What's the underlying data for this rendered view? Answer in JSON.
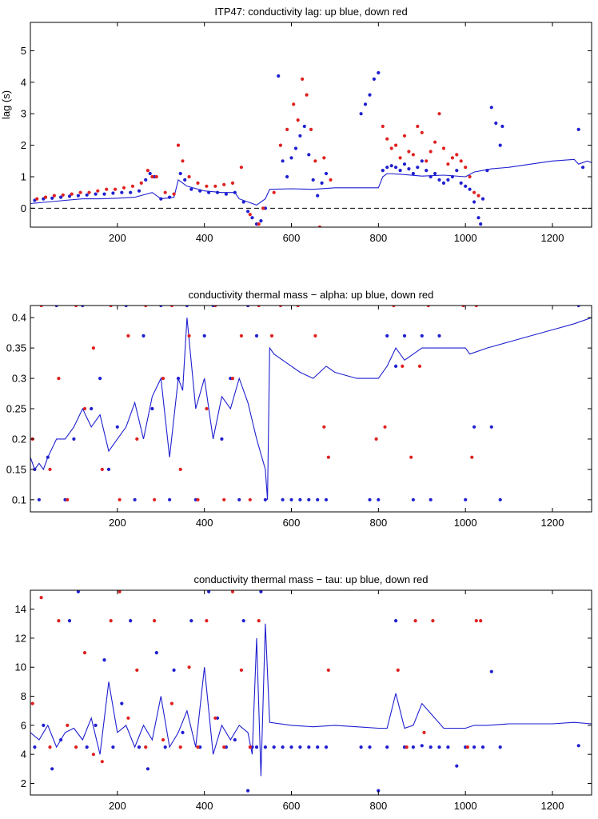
{
  "colors": {
    "up": "#1f1fd0",
    "down": "#e02020",
    "axis": "#000000",
    "zero": "#000000"
  },
  "chart_data": [
    {
      "type": "scatter",
      "title": "ITP47: conductivity lag: up blue, down red",
      "xlabel": "",
      "ylabel": "lag (s)",
      "xlim": [
        0,
        1290
      ],
      "ylim": [
        -0.6,
        5.9
      ],
      "xticks": [
        200,
        400,
        600,
        800,
        1000,
        1200
      ],
      "xtick_labels": [
        "200",
        "400",
        "600",
        "800",
        "1000",
        "1200"
      ],
      "yticks": [
        0,
        1,
        2,
        3,
        4,
        5
      ],
      "ytick_labels": [
        "0",
        "1",
        "2",
        "3",
        "4",
        "5"
      ],
      "zero_line": 0,
      "series": [
        {
          "name": "up (smoothed)",
          "kind": "line",
          "x": [
            0,
            40,
            80,
            120,
            160,
            200,
            240,
            280,
            300,
            330,
            340,
            360,
            400,
            440,
            470,
            480,
            500,
            520,
            540,
            550,
            600,
            650,
            700,
            750,
            800,
            810,
            820,
            850,
            900,
            950,
            1000,
            1020,
            1040,
            1060,
            1100,
            1150,
            1200,
            1250,
            1260,
            1280,
            1290
          ],
          "y": [
            0.15,
            0.2,
            0.25,
            0.3,
            0.3,
            0.32,
            0.35,
            0.5,
            0.3,
            0.35,
            0.9,
            0.7,
            0.55,
            0.5,
            0.5,
            0.3,
            0.2,
            0.1,
            0.3,
            0.6,
            0.62,
            0.6,
            0.65,
            0.65,
            0.65,
            1.0,
            1.1,
            1.08,
            1.02,
            1.05,
            1.0,
            1.15,
            1.2,
            1.25,
            1.3,
            1.4,
            1.5,
            1.55,
            1.4,
            1.5,
            1.45
          ]
        },
        {
          "name": "up",
          "kind": "points",
          "x": [
            10,
            30,
            50,
            70,
            90,
            110,
            130,
            150,
            170,
            190,
            210,
            230,
            250,
            265,
            275,
            285,
            300,
            320,
            345,
            355,
            370,
            390,
            410,
            430,
            450,
            470,
            490,
            500,
            510,
            520,
            530,
            540,
            570,
            580,
            590,
            600,
            610,
            620,
            630,
            640,
            650,
            660,
            670,
            680,
            760,
            770,
            780,
            790,
            800,
            810,
            820,
            830,
            840,
            850,
            860,
            870,
            880,
            890,
            900,
            910,
            920,
            930,
            940,
            950,
            960,
            970,
            980,
            990,
            1000,
            1010,
            1020,
            1030,
            1035,
            1040,
            1050,
            1060,
            1070,
            1080,
            1085,
            1260,
            1270
          ],
          "y": [
            0.25,
            0.3,
            0.32,
            0.35,
            0.38,
            0.4,
            0.42,
            0.45,
            0.45,
            0.48,
            0.5,
            0.5,
            0.55,
            0.9,
            1.1,
            1.0,
            0.3,
            0.35,
            1.1,
            0.9,
            0.6,
            0.55,
            0.5,
            0.5,
            0.45,
            0.5,
            0.2,
            -0.1,
            -0.3,
            -0.5,
            -0.4,
            0.0,
            4.2,
            1.5,
            1.0,
            1.6,
            1.9,
            2.3,
            2.6,
            1.7,
            0.9,
            0.4,
            0.8,
            1.1,
            3.0,
            3.3,
            3.6,
            4.1,
            4.3,
            1.2,
            1.3,
            1.35,
            1.3,
            1.2,
            1.4,
            1.25,
            1.1,
            1.3,
            1.5,
            1.2,
            1.0,
            1.1,
            0.9,
            0.8,
            0.9,
            1.0,
            1.2,
            0.8,
            0.7,
            0.6,
            0.2,
            -0.3,
            -0.5,
            0.3,
            1.2,
            3.2,
            2.7,
            2.0,
            2.6,
            2.5,
            1.3
          ]
        },
        {
          "name": "down",
          "kind": "points",
          "x": [
            15,
            35,
            55,
            75,
            95,
            115,
            135,
            155,
            175,
            195,
            215,
            235,
            255,
            270,
            280,
            290,
            310,
            330,
            340,
            350,
            365,
            385,
            405,
            425,
            445,
            465,
            485,
            505,
            525,
            535,
            560,
            575,
            590,
            605,
            615,
            625,
            635,
            645,
            655,
            665,
            675,
            690,
            810,
            820,
            830,
            840,
            850,
            860,
            870,
            880,
            890,
            900,
            910,
            920,
            930,
            940,
            950,
            960,
            970,
            980,
            990,
            1000,
            1010,
            1020,
            1030
          ],
          "y": [
            0.3,
            0.35,
            0.4,
            0.42,
            0.45,
            0.5,
            0.5,
            0.55,
            0.6,
            0.6,
            0.65,
            0.7,
            0.8,
            1.2,
            1.0,
            1.0,
            0.5,
            0.45,
            2.0,
            1.5,
            1.0,
            0.8,
            0.7,
            0.7,
            0.75,
            0.8,
            1.3,
            -0.2,
            -0.5,
            0.0,
            0.5,
            2.0,
            2.5,
            3.3,
            2.8,
            4.1,
            3.6,
            2.5,
            1.5,
            -0.6,
            1.6,
            0.9,
            2.6,
            2.2,
            1.9,
            2.0,
            1.6,
            2.3,
            1.8,
            1.7,
            2.6,
            2.4,
            1.5,
            1.8,
            2.1,
            3.0,
            1.9,
            1.4,
            1.6,
            1.7,
            1.5,
            1.3,
            1.0,
            0.5,
            0.4
          ]
        }
      ]
    },
    {
      "type": "scatter",
      "title": "conductivity thermal mass − alpha: up blue, down red",
      "xlabel": "",
      "ylabel": "",
      "xlim": [
        0,
        1290
      ],
      "ylim": [
        0.08,
        0.42
      ],
      "xticks": [
        200,
        400,
        600,
        800,
        1000,
        1200
      ],
      "xtick_labels": [
        "200",
        "400",
        "600",
        "800",
        "1000",
        "1200"
      ],
      "yticks": [
        0.1,
        0.15,
        0.2,
        0.25,
        0.3,
        0.35,
        0.4
      ],
      "ytick_labels": [
        "0.1",
        "0.15",
        "0.2",
        "0.25",
        "0.3",
        "0.35",
        "0.4"
      ],
      "series": [
        {
          "name": "up (smoothed)",
          "kind": "line",
          "x": [
            0,
            10,
            20,
            30,
            40,
            60,
            80,
            100,
            120,
            140,
            160,
            180,
            200,
            220,
            240,
            260,
            280,
            300,
            320,
            340,
            350,
            360,
            380,
            400,
            420,
            440,
            460,
            480,
            500,
            520,
            540,
            545,
            550,
            560,
            580,
            600,
            620,
            650,
            680,
            700,
            750,
            800,
            820,
            840,
            860,
            880,
            900,
            950,
            1000,
            1010,
            1050,
            1100,
            1150,
            1200,
            1250,
            1290
          ],
          "y": [
            0.17,
            0.15,
            0.16,
            0.15,
            0.17,
            0.2,
            0.2,
            0.22,
            0.25,
            0.22,
            0.24,
            0.18,
            0.2,
            0.22,
            0.26,
            0.2,
            0.27,
            0.3,
            0.17,
            0.3,
            0.28,
            0.4,
            0.25,
            0.3,
            0.2,
            0.27,
            0.25,
            0.3,
            0.26,
            0.2,
            0.15,
            0.1,
            0.35,
            0.34,
            0.33,
            0.32,
            0.31,
            0.3,
            0.32,
            0.31,
            0.3,
            0.3,
            0.32,
            0.35,
            0.33,
            0.34,
            0.35,
            0.35,
            0.35,
            0.34,
            0.35,
            0.36,
            0.37,
            0.38,
            0.39,
            0.4
          ]
        },
        {
          "name": "up",
          "kind": "points",
          "x": [
            10,
            20,
            40,
            60,
            80,
            100,
            120,
            140,
            160,
            180,
            200,
            220,
            240,
            260,
            280,
            300,
            320,
            340,
            360,
            380,
            400,
            420,
            440,
            460,
            480,
            500,
            520,
            540,
            580,
            600,
            620,
            640,
            660,
            680,
            780,
            800,
            820,
            840,
            860,
            880,
            900,
            920,
            940,
            1000,
            1020,
            1060,
            1080,
            1260
          ],
          "y": [
            0.15,
            0.1,
            0.17,
            0.42,
            0.1,
            0.2,
            0.42,
            0.25,
            0.3,
            0.15,
            0.22,
            0.42,
            0.1,
            0.37,
            0.25,
            0.42,
            0.1,
            0.3,
            0.42,
            0.1,
            0.37,
            0.42,
            0.2,
            0.3,
            0.1,
            0.42,
            0.37,
            0.1,
            0.1,
            0.1,
            0.1,
            0.1,
            0.1,
            0.1,
            0.1,
            0.1,
            0.37,
            0.32,
            0.37,
            0.1,
            0.37,
            0.1,
            0.37,
            0.1,
            0.22,
            0.22,
            0.1,
            0.42
          ]
        },
        {
          "name": "down",
          "kind": "points",
          "x": [
            5,
            25,
            45,
            65,
            85,
            105,
            125,
            145,
            165,
            185,
            205,
            225,
            245,
            265,
            285,
            305,
            325,
            345,
            365,
            385,
            405,
            425,
            445,
            465,
            485,
            505,
            525,
            555,
            575,
            615,
            655,
            675,
            685,
            795,
            815,
            835,
            855,
            875,
            895,
            915,
            995,
            1015,
            1025
          ],
          "y": [
            0.2,
            0.42,
            0.15,
            0.3,
            0.1,
            0.42,
            0.25,
            0.35,
            0.15,
            0.42,
            0.1,
            0.37,
            0.2,
            0.42,
            0.1,
            0.3,
            0.42,
            0.15,
            0.37,
            0.1,
            0.25,
            0.42,
            0.1,
            0.3,
            0.37,
            0.1,
            0.42,
            0.37,
            0.42,
            0.42,
            0.37,
            0.22,
            0.17,
            0.2,
            0.22,
            0.42,
            0.32,
            0.17,
            0.32,
            0.42,
            0.42,
            0.17,
            0.42
          ]
        }
      ]
    },
    {
      "type": "scatter",
      "title": "conductivity thermal mass − tau: up blue, down red",
      "xlabel": "",
      "ylabel": "",
      "xlim": [
        0,
        1290
      ],
      "ylim": [
        1.2,
        15.3
      ],
      "xticks": [
        200,
        400,
        600,
        800,
        1000,
        1200
      ],
      "xtick_labels": [
        "200",
        "400",
        "600",
        "800",
        "1000",
        "1200"
      ],
      "yticks": [
        2,
        4,
        6,
        8,
        10,
        12,
        14
      ],
      "ytick_labels": [
        "2",
        "4",
        "6",
        "8",
        "10",
        "12",
        "14"
      ],
      "series": [
        {
          "name": "up (smoothed)",
          "kind": "line",
          "x": [
            0,
            20,
            40,
            60,
            80,
            100,
            120,
            140,
            160,
            180,
            200,
            220,
            240,
            260,
            280,
            300,
            320,
            340,
            360,
            380,
            400,
            420,
            440,
            460,
            480,
            500,
            510,
            520,
            530,
            540,
            550,
            600,
            650,
            700,
            750,
            800,
            820,
            840,
            860,
            880,
            900,
            950,
            1000,
            1020,
            1050,
            1100,
            1150,
            1200,
            1250,
            1290
          ],
          "y": [
            5.5,
            5.0,
            6.0,
            4.5,
            5.5,
            5.8,
            5.0,
            6.5,
            4.0,
            9.0,
            5.5,
            6.0,
            4.5,
            6.0,
            5.0,
            8.0,
            4.5,
            5.5,
            7.0,
            4.5,
            10.0,
            4.0,
            6.0,
            5.0,
            6.0,
            5.5,
            4.0,
            12.0,
            2.5,
            13.0,
            6.2,
            6.0,
            5.9,
            6.0,
            5.9,
            5.8,
            5.8,
            8.2,
            5.8,
            6.0,
            7.5,
            5.8,
            5.8,
            6.0,
            6.0,
            6.1,
            6.1,
            6.1,
            6.2,
            6.1
          ]
        },
        {
          "name": "up",
          "kind": "points",
          "x": [
            10,
            30,
            50,
            70,
            90,
            110,
            130,
            150,
            170,
            190,
            210,
            230,
            250,
            270,
            290,
            310,
            330,
            350,
            370,
            390,
            410,
            430,
            450,
            470,
            490,
            500,
            510,
            520,
            530,
            540,
            560,
            580,
            600,
            620,
            640,
            660,
            680,
            760,
            780,
            800,
            820,
            840,
            860,
            880,
            900,
            920,
            940,
            960,
            980,
            1000,
            1020,
            1040,
            1060,
            1080,
            1260
          ],
          "y": [
            4.5,
            6.0,
            3.0,
            5.0,
            13.2,
            15.2,
            4.5,
            6.0,
            10.5,
            4.5,
            7.5,
            13.2,
            4.5,
            3.0,
            11.0,
            4.5,
            9.8,
            5.5,
            13.2,
            4.5,
            15.2,
            6.5,
            4.5,
            5.0,
            13.2,
            1.5,
            4.5,
            4.5,
            15.2,
            4.5,
            4.5,
            4.5,
            4.5,
            4.5,
            4.5,
            4.5,
            4.5,
            4.5,
            4.5,
            1.5,
            4.5,
            13.2,
            4.5,
            4.5,
            4.6,
            4.5,
            4.5,
            4.5,
            3.2,
            4.5,
            4.5,
            4.5,
            9.7,
            4.5,
            4.6
          ]
        },
        {
          "name": "down",
          "kind": "points",
          "x": [
            5,
            25,
            45,
            65,
            85,
            105,
            125,
            145,
            165,
            185,
            205,
            225,
            245,
            265,
            285,
            305,
            325,
            345,
            365,
            385,
            405,
            425,
            445,
            465,
            485,
            505,
            525,
            685,
            845,
            865,
            885,
            905,
            925,
            1005,
            1025,
            1035
          ],
          "y": [
            7.5,
            14.8,
            4.5,
            13.2,
            6.0,
            4.5,
            11.0,
            4.0,
            3.5,
            13.2,
            15.2,
            6.5,
            9.8,
            4.5,
            13.2,
            5.0,
            7.5,
            4.5,
            10.0,
            4.5,
            13.2,
            6.5,
            4.5,
            15.2,
            9.8,
            4.5,
            13.2,
            9.8,
            9.8,
            4.5,
            13.2,
            5.5,
            13.2,
            4.5,
            13.2,
            13.2
          ]
        }
      ]
    }
  ]
}
